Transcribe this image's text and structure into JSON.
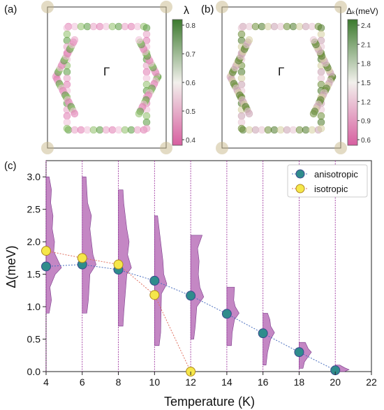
{
  "panels": {
    "a": {
      "label": "(a)",
      "center_label": "Γ",
      "colorbar_title": "λ",
      "colorbar_ticks": [
        "0.8",
        "0.7",
        "0.6",
        "0.5",
        "0.4"
      ]
    },
    "b": {
      "label": "(b)",
      "center_label": "Γ",
      "colorbar_title": "Δₖ(meV)",
      "colorbar_ticks": [
        "2.4",
        "2.1",
        "1.8",
        "1.5",
        "1.2",
        "0.9",
        "0.6"
      ]
    },
    "c": {
      "label": "(c)"
    }
  },
  "colors": {
    "anisotropic_marker": "#2f8c8c",
    "isotropic_marker": "#f5e74a",
    "distribution_fill": "#b05fb0",
    "colormap_low": "#d75fa0",
    "colormap_mid": "#f2f0ec",
    "colormap_high": "#3c7a2e"
  },
  "chart_data": [
    {
      "type": "scatter",
      "panel": "c",
      "xlabel": "Temperature (K)",
      "ylabel": "Δ(meV)",
      "xlim": [
        4,
        22
      ],
      "ylim": [
        0.0,
        3.25
      ],
      "xticks": [
        "4",
        "6",
        "8",
        "10",
        "12",
        "14",
        "16",
        "18",
        "20",
        "22"
      ],
      "yticks": [
        "0.0",
        "0.5",
        "1.0",
        "1.5",
        "2.0",
        "2.5",
        "3.0"
      ],
      "legend_position": "top-right",
      "series": [
        {
          "name": "anisotropic",
          "x": [
            4,
            6,
            8,
            10,
            12,
            14,
            16,
            18,
            20
          ],
          "y": [
            1.62,
            1.65,
            1.57,
            1.4,
            1.17,
            0.89,
            0.59,
            0.3,
            0.02
          ]
        },
        {
          "name": "isotropic",
          "x": [
            4,
            6,
            8,
            10,
            12
          ],
          "y": [
            1.86,
            1.75,
            1.65,
            1.18,
            0.0
          ]
        }
      ],
      "gap_distributions": [
        {
          "T": 4,
          "dist": [
            [
              0.9,
              0.2
            ],
            [
              1.1,
              0.35
            ],
            [
              1.3,
              0.25
            ],
            [
              1.5,
              0.6
            ],
            [
              1.6,
              1.0
            ],
            [
              1.7,
              0.8
            ],
            [
              1.85,
              0.5
            ],
            [
              2.0,
              0.55
            ],
            [
              2.2,
              0.4
            ],
            [
              2.4,
              0.45
            ],
            [
              2.6,
              0.3
            ],
            [
              2.8,
              0.35
            ],
            [
              3.0,
              0.2
            ]
          ]
        },
        {
          "T": 6,
          "dist": [
            [
              0.9,
              0.3
            ],
            [
              1.1,
              0.4
            ],
            [
              1.5,
              0.5
            ],
            [
              1.65,
              0.9
            ],
            [
              1.8,
              0.7
            ],
            [
              2.0,
              0.6
            ],
            [
              2.2,
              0.5
            ],
            [
              2.4,
              0.6
            ],
            [
              2.6,
              0.35
            ],
            [
              2.8,
              0.3
            ],
            [
              3.0,
              0.25
            ]
          ]
        },
        {
          "T": 8,
          "dist": [
            [
              0.7,
              0.3
            ],
            [
              0.9,
              0.35
            ],
            [
              1.5,
              0.55
            ],
            [
              1.6,
              0.85
            ],
            [
              1.8,
              0.6
            ],
            [
              2.0,
              0.7
            ],
            [
              2.2,
              0.55
            ],
            [
              2.4,
              0.45
            ],
            [
              2.6,
              0.35
            ],
            [
              2.8,
              0.3
            ]
          ]
        },
        {
          "T": 10,
          "dist": [
            [
              0.4,
              0.3
            ],
            [
              0.6,
              0.4
            ],
            [
              1.2,
              0.45
            ],
            [
              1.35,
              0.8
            ],
            [
              1.5,
              0.6
            ],
            [
              1.7,
              0.55
            ],
            [
              1.9,
              0.45
            ],
            [
              2.1,
              0.35
            ],
            [
              2.4,
              0.2
            ]
          ]
        },
        {
          "T": 12,
          "dist": [
            [
              0.5,
              0.2
            ],
            [
              0.7,
              0.3
            ],
            [
              1.0,
              0.4
            ],
            [
              1.15,
              0.85
            ],
            [
              1.3,
              0.6
            ],
            [
              1.5,
              0.5
            ],
            [
              1.7,
              0.55
            ],
            [
              1.9,
              0.45
            ],
            [
              2.1,
              0.75
            ]
          ]
        },
        {
          "T": 14,
          "dist": [
            [
              0.4,
              0.3
            ],
            [
              0.6,
              0.35
            ],
            [
              0.8,
              0.5
            ],
            [
              0.9,
              0.8
            ],
            [
              1.0,
              0.55
            ],
            [
              1.1,
              0.45
            ],
            [
              1.3,
              0.5
            ]
          ]
        },
        {
          "T": 16,
          "dist": [
            [
              0.1,
              0.2
            ],
            [
              0.3,
              0.3
            ],
            [
              0.5,
              0.5
            ],
            [
              0.6,
              0.75
            ],
            [
              0.7,
              0.5
            ],
            [
              0.8,
              0.45
            ],
            [
              0.9,
              0.3
            ]
          ]
        },
        {
          "T": 18,
          "dist": [
            [
              0.05,
              0.25
            ],
            [
              0.15,
              0.35
            ],
            [
              0.3,
              0.8
            ],
            [
              0.35,
              0.6
            ],
            [
              0.45,
              0.4
            ]
          ]
        },
        {
          "T": 20,
          "dist": [
            [
              0.0,
              0.6
            ],
            [
              0.03,
              0.9
            ],
            [
              0.06,
              0.6
            ],
            [
              0.1,
              0.3
            ]
          ]
        }
      ]
    }
  ]
}
